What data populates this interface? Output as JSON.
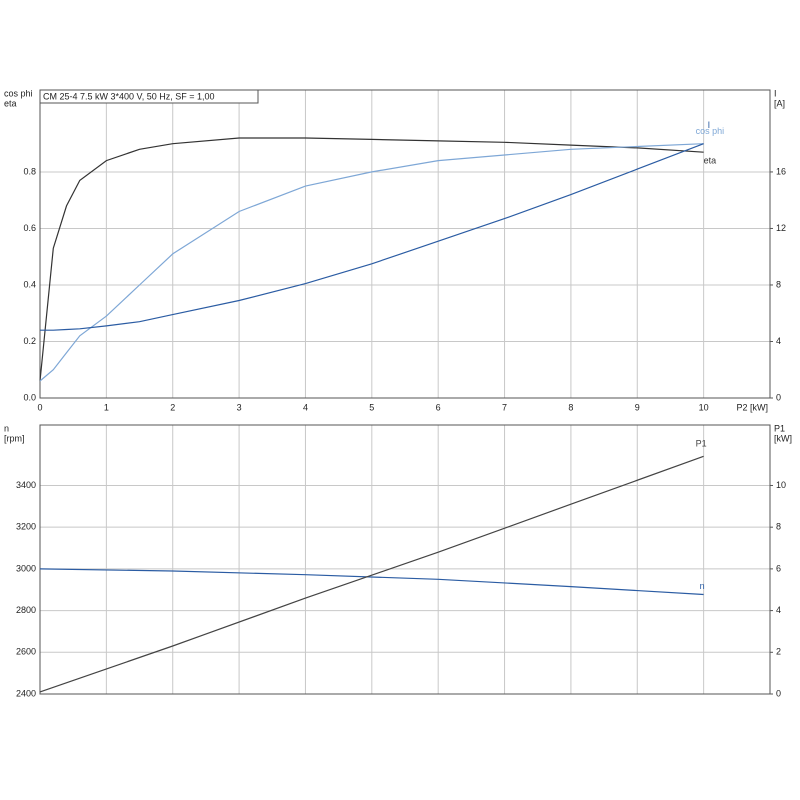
{
  "chart_data": [
    {
      "type": "line",
      "title": "CM 25-4   7.5 kW   3*400 V, 50 Hz, SF = 1,00",
      "xlabel": "P2 [kW]",
      "ylabel": [
        "cos phi",
        "eta"
      ],
      "y2label": [
        "I",
        "[A]"
      ],
      "x": [
        0,
        0.2,
        0.4,
        0.6,
        1,
        1.5,
        2,
        3,
        4,
        5,
        6,
        7,
        8,
        9,
        10
      ],
      "xlim": [
        0,
        11
      ],
      "xticks": [
        0,
        1,
        2,
        3,
        4,
        5,
        6,
        7,
        8,
        9,
        10
      ],
      "ylim": [
        0,
        1.09
      ],
      "yticks": [
        {
          "value": 0,
          "label": "0.0"
        },
        0.2,
        0.4,
        0.6,
        0.8
      ],
      "y2lim": [
        0,
        21.8
      ],
      "y2ticks": [
        0,
        4,
        8,
        12,
        16
      ],
      "grid": true,
      "series": [
        {
          "name": "eta",
          "color": "#333333",
          "values": [
            0.06,
            0.53,
            0.68,
            0.77,
            0.84,
            0.88,
            0.9,
            0.92,
            0.92,
            0.915,
            0.91,
            0.905,
            0.895,
            0.885,
            0.87
          ]
        },
        {
          "name": "cos phi",
          "color": "#7ea7d6",
          "values": [
            0.06,
            0.1,
            0.16,
            0.22,
            0.29,
            0.4,
            0.51,
            0.66,
            0.75,
            0.8,
            0.84,
            0.86,
            0.88,
            0.89,
            0.9
          ]
        },
        {
          "name": "I",
          "color": "#2b5ca3",
          "axis": "y2",
          "values": [
            4.8,
            4.8,
            4.85,
            4.9,
            5.1,
            5.4,
            5.9,
            6.9,
            8.1,
            9.5,
            11.1,
            12.7,
            14.4,
            16.2,
            18.0
          ]
        }
      ]
    },
    {
      "type": "line",
      "ylabel": [
        "n",
        "[rpm]"
      ],
      "y2label": [
        "P1",
        "[kW]"
      ],
      "x": [
        0,
        2,
        4,
        6,
        8,
        10
      ],
      "xlim": [
        0,
        11
      ],
      "ylim": [
        2400,
        3690
      ],
      "yticks": [
        2400,
        2600,
        2800,
        3000,
        3200,
        3400
      ],
      "y2lim": [
        0,
        12.9
      ],
      "y2ticks": [
        0,
        2,
        4,
        6,
        8,
        10
      ],
      "grid": true,
      "series": [
        {
          "name": "n",
          "color": "#2b5ca3",
          "values": [
            3000,
            2990,
            2972,
            2950,
            2915,
            2877
          ]
        },
        {
          "name": "P1",
          "color": "#444444",
          "axis": "y2",
          "values": [
            0.1,
            2.3,
            4.6,
            6.8,
            9.1,
            11.4
          ]
        }
      ]
    }
  ]
}
